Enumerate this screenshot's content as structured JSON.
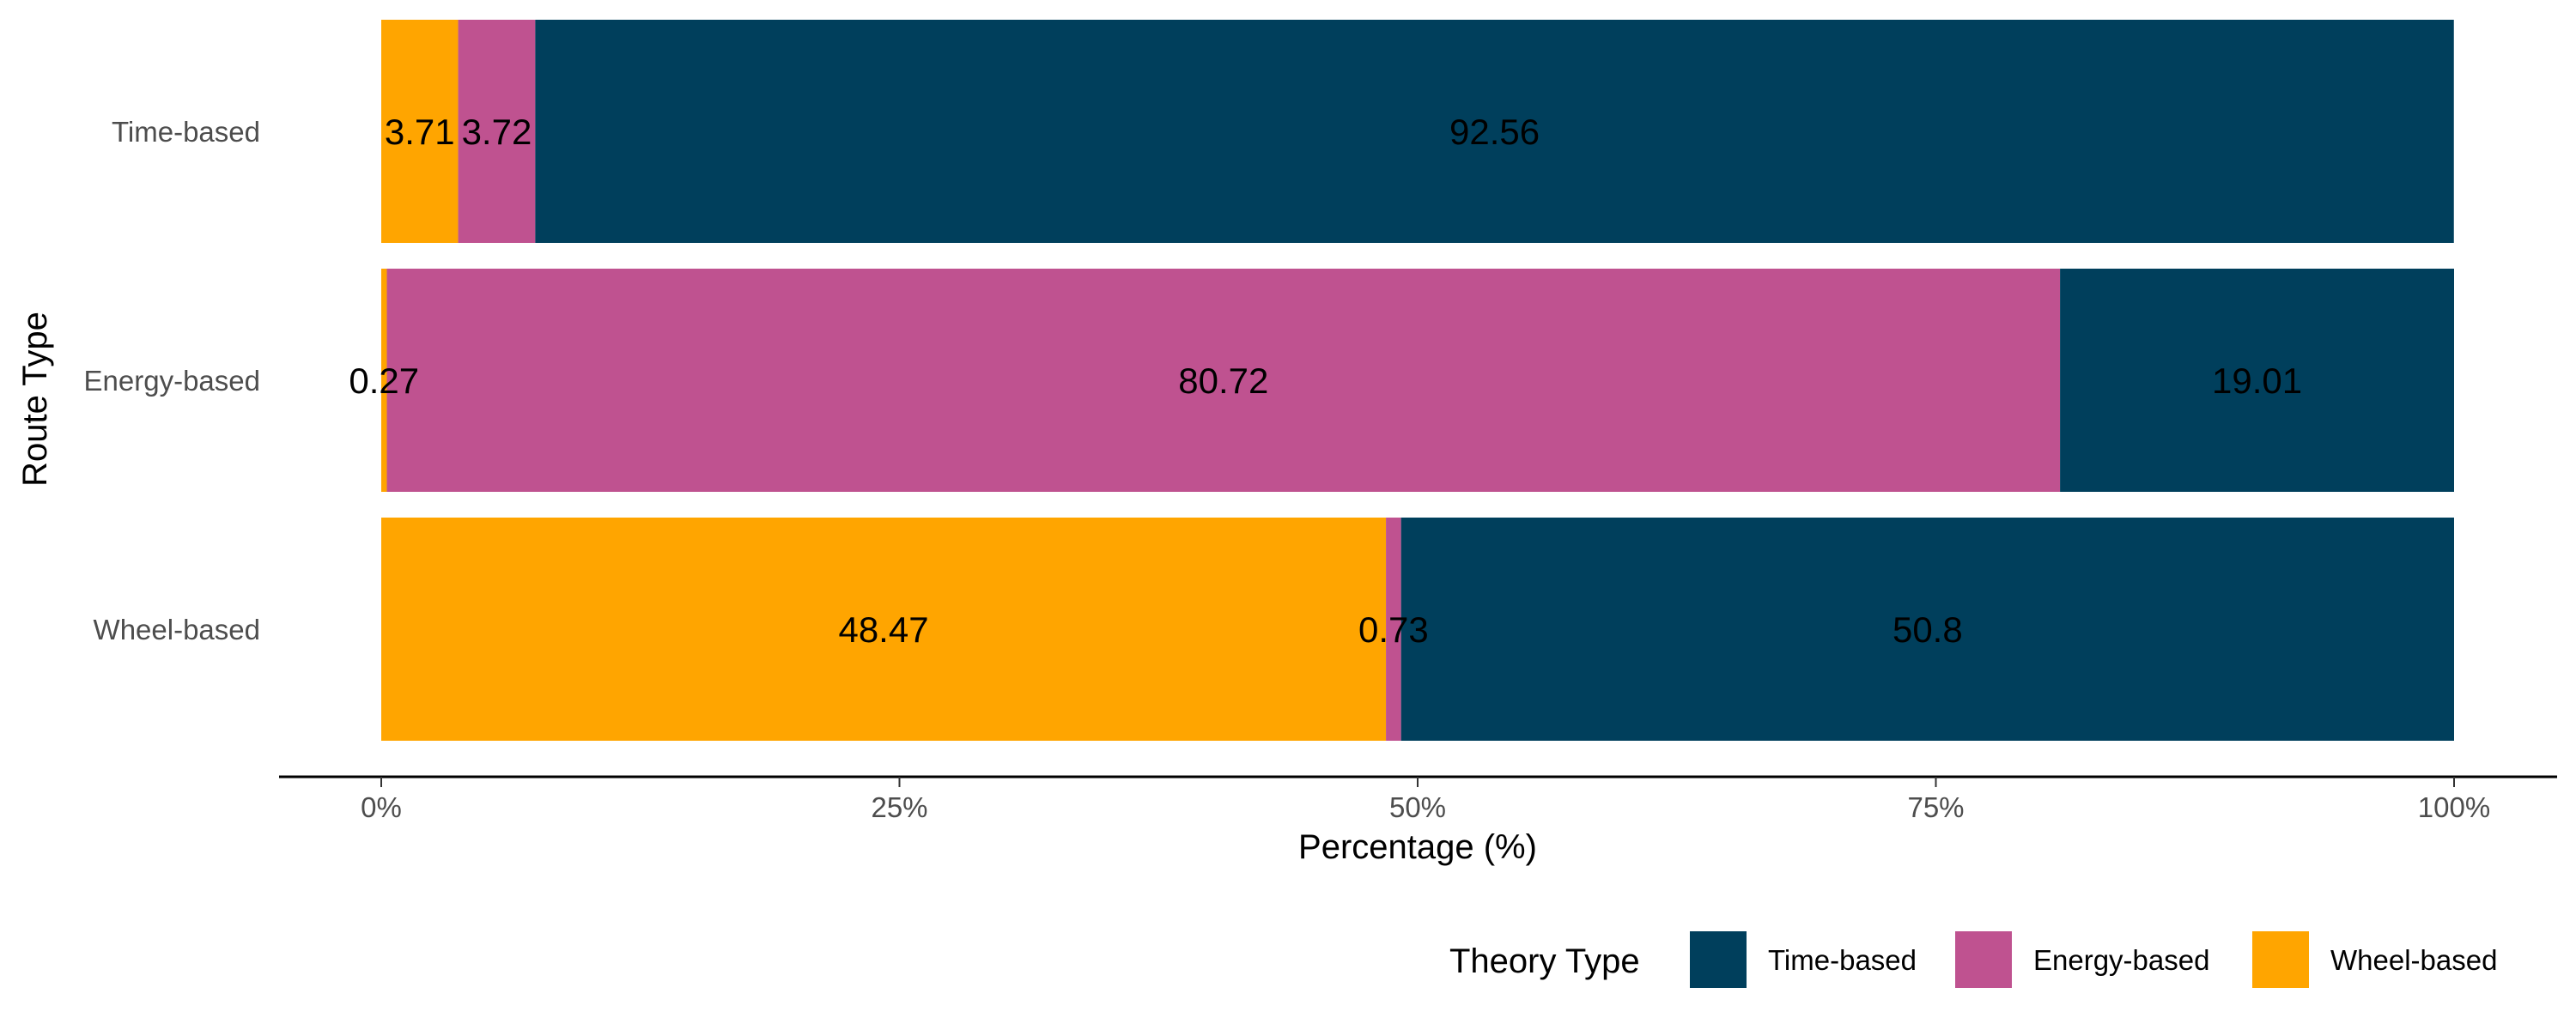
{
  "chart_data": {
    "type": "bar",
    "orientation": "horizontal",
    "stacked": true,
    "title": "",
    "xlabel": "Percentage (%)",
    "ylabel": "Route Type",
    "xlim": [
      0,
      100
    ],
    "x_ticks": [
      "0%",
      "25%",
      "50%",
      "75%",
      "100%"
    ],
    "x_tick_values": [
      0,
      25,
      50,
      75,
      100
    ],
    "categories": [
      "Time-based",
      "Energy-based",
      "Wheel-based"
    ],
    "series": [
      {
        "name": "Wheel-based",
        "color": "#FFA500",
        "values": [
          3.71,
          0.27,
          48.47
        ],
        "labels": [
          "3.71",
          "0.27",
          "48.47"
        ]
      },
      {
        "name": "Energy-based",
        "color": "#BF5290",
        "values": [
          3.72,
          80.72,
          0.73
        ],
        "labels": [
          "3.72",
          "80.72",
          "0.73"
        ]
      },
      {
        "name": "Time-based",
        "color": "#003F5C",
        "values": [
          92.56,
          19.01,
          50.8
        ],
        "labels": [
          "92.56",
          "19.01",
          "50.8"
        ]
      }
    ],
    "legend": {
      "title": "Theory Type",
      "position": "bottom-right",
      "order": [
        "Time-based",
        "Energy-based",
        "Wheel-based"
      ]
    },
    "grid": false
  }
}
